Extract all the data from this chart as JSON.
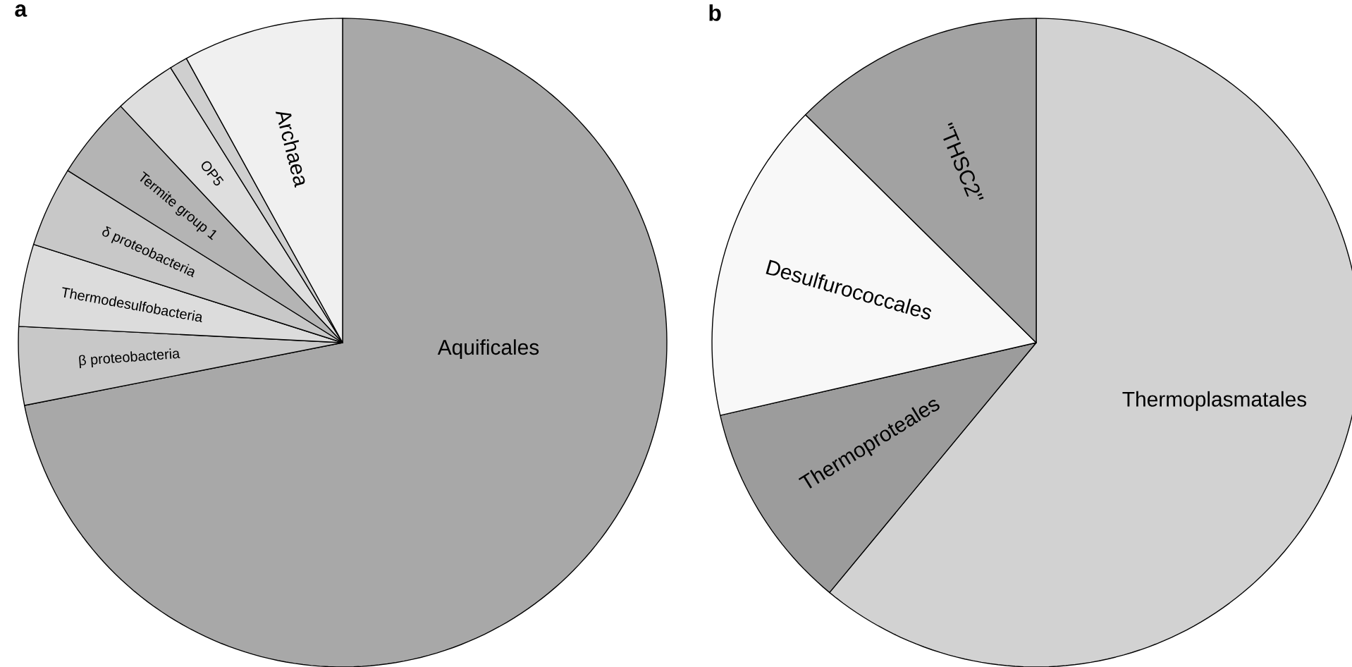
{
  "chart_data": [
    {
      "type": "pie",
      "title": "a",
      "categories": [
        "Aquificales",
        "β proteobacteria",
        "Thermodesulfobacteria",
        "δ proteobacteria",
        "Termite group 1",
        "OP5",
        null,
        "Archaea"
      ],
      "values": [
        71.9,
        3.9,
        4.1,
        4.0,
        4.1,
        3.1,
        0.9,
        8.0
      ],
      "colors": [
        "#a8a8a8",
        "#c8c8c8",
        "#dcdcdc",
        "#c8c8c8",
        "#b4b4b4",
        "#dedede",
        "#cfcfcf",
        "#f0f0f0"
      ]
    },
    {
      "type": "pie",
      "title": "b",
      "categories": [
        "Thermoplasmatales",
        "Thermoproteales",
        "Desulfurococcales",
        "\"THSC2\""
      ],
      "values": [
        61.0,
        10.4,
        16.0,
        12.6
      ],
      "colors": [
        "#d2d2d2",
        "#9c9c9c",
        "#f8f8f8",
        "#a2a2a2"
      ]
    }
  ]
}
